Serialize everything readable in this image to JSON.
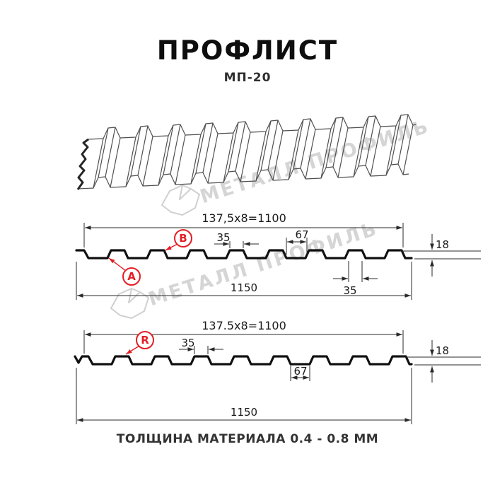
{
  "header": {
    "title": "ПРОФЛИСТ",
    "subtitle": "МП-20"
  },
  "caption": "ТОЛЩИНА МАТЕРИАЛА 0.4 - 0.8 ММ",
  "watermark": {
    "text": "МЕТАЛЛ ПРОФИЛЬ"
  },
  "colors": {
    "accent_red": "#e31e24",
    "watermark_gray": "#d5d5d5",
    "line_dark": "#1b1b1b"
  },
  "profile_top": {
    "pitch_dim": "137,5x8=1100",
    "overall_dim": "1150",
    "rib_top_dim": "35",
    "valley_dim": "67",
    "height_dim": "18",
    "rib_top_dim_lower": "35",
    "label_a": "А",
    "label_b": "В"
  },
  "profile_bottom": {
    "pitch_dim": "137.5x8=1100",
    "overall_dim": "1150",
    "rib_top_dim": "35",
    "valley_dim": "67",
    "height_dim": "18",
    "label_r": "R"
  }
}
